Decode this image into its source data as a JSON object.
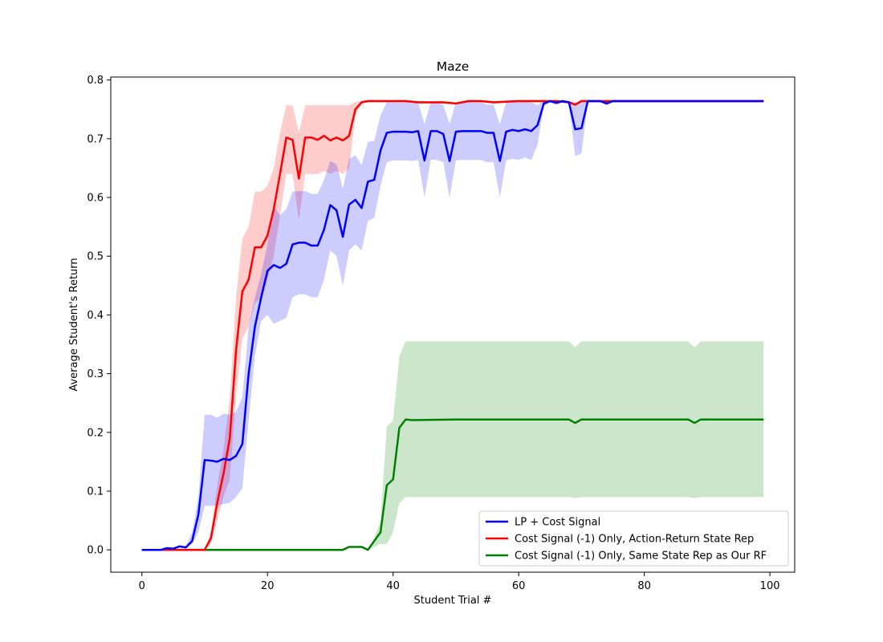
{
  "chart_data": {
    "type": "line",
    "title": "Maze",
    "xlabel": "Student Trial #",
    "ylabel": "Average Student's Return",
    "xlim": [
      -4.95,
      103.95
    ],
    "ylim": [
      -0.038,
      0.805
    ],
    "xticks": [
      0,
      20,
      40,
      60,
      80,
      100
    ],
    "yticks": [
      0.0,
      0.1,
      0.2,
      0.3,
      0.4,
      0.5,
      0.6,
      0.7,
      0.8
    ],
    "ytick_labels": [
      "0.0",
      "0.1",
      "0.2",
      "0.3",
      "0.4",
      "0.5",
      "0.6",
      "0.7",
      "0.8"
    ],
    "grid": false,
    "legend_position": "lower-right",
    "series": [
      {
        "name": "Cost Signal (-1) Only, Same State Rep as Our RF",
        "color": "#008000",
        "band_color": "#008000",
        "x": [
          0,
          32,
          33,
          35,
          36,
          37,
          38,
          39,
          40,
          41,
          42,
          43,
          50,
          60,
          68,
          69,
          70,
          80,
          87,
          88,
          89,
          99
        ],
        "y": [
          0.0,
          0.0,
          0.005,
          0.005,
          0.0,
          0.015,
          0.03,
          0.11,
          0.12,
          0.208,
          0.222,
          0.221,
          0.222,
          0.222,
          0.222,
          0.216,
          0.222,
          0.222,
          0.222,
          0.216,
          0.222,
          0.222
        ],
        "lower": [
          0.0,
          0.0,
          0.005,
          0.005,
          0.0,
          0.005,
          0.01,
          0.01,
          0.03,
          0.08,
          0.09,
          0.09,
          0.09,
          0.09,
          0.09,
          0.088,
          0.09,
          0.09,
          0.09,
          0.088,
          0.09,
          0.09
        ],
        "upper": [
          0.0,
          0.0,
          0.005,
          0.005,
          0.0,
          0.02,
          0.05,
          0.21,
          0.22,
          0.33,
          0.355,
          0.355,
          0.355,
          0.355,
          0.355,
          0.345,
          0.355,
          0.355,
          0.355,
          0.345,
          0.355,
          0.355
        ]
      },
      {
        "name": "Cost Signal (-1) Only, Action-Return State Rep",
        "color": "#ff0000",
        "band_color": "#ff0000",
        "x": [
          0,
          10,
          11,
          12,
          13,
          14,
          15,
          16,
          17,
          18,
          19,
          20,
          21,
          22,
          23,
          24,
          25,
          26,
          27,
          28,
          29,
          30,
          31,
          32,
          33,
          34,
          35,
          36,
          40,
          42,
          44,
          46,
          48,
          50,
          52,
          54,
          56,
          60,
          64,
          66,
          68,
          69,
          70,
          72,
          75,
          80,
          85,
          90,
          95,
          99
        ],
        "y": [
          0.0,
          0.0,
          0.02,
          0.08,
          0.13,
          0.19,
          0.34,
          0.44,
          0.46,
          0.515,
          0.515,
          0.535,
          0.58,
          0.64,
          0.702,
          0.698,
          0.632,
          0.702,
          0.702,
          0.698,
          0.705,
          0.697,
          0.702,
          0.697,
          0.705,
          0.75,
          0.762,
          0.764,
          0.764,
          0.764,
          0.762,
          0.762,
          0.762,
          0.76,
          0.764,
          0.764,
          0.762,
          0.764,
          0.764,
          0.764,
          0.762,
          0.758,
          0.764,
          0.764,
          0.764,
          0.764,
          0.764,
          0.764,
          0.764,
          0.764
        ],
        "lower": [
          0.0,
          0.0,
          0.01,
          0.05,
          0.09,
          0.12,
          0.26,
          0.36,
          0.38,
          0.42,
          0.43,
          0.46,
          0.5,
          0.57,
          0.64,
          0.64,
          0.56,
          0.64,
          0.64,
          0.64,
          0.645,
          0.64,
          0.645,
          0.64,
          0.65,
          0.74,
          0.76,
          0.762,
          0.762,
          0.762,
          0.76,
          0.76,
          0.76,
          0.758,
          0.762,
          0.762,
          0.76,
          0.762,
          0.762,
          0.762,
          0.76,
          0.756,
          0.762,
          0.762,
          0.762,
          0.762,
          0.762,
          0.762,
          0.762,
          0.762
        ],
        "upper": [
          0.0,
          0.0,
          0.03,
          0.11,
          0.17,
          0.26,
          0.43,
          0.53,
          0.55,
          0.61,
          0.61,
          0.62,
          0.65,
          0.71,
          0.757,
          0.757,
          0.71,
          0.757,
          0.757,
          0.757,
          0.757,
          0.757,
          0.757,
          0.757,
          0.757,
          0.762,
          0.765,
          0.766,
          0.766,
          0.766,
          0.764,
          0.764,
          0.764,
          0.762,
          0.766,
          0.766,
          0.764,
          0.766,
          0.766,
          0.766,
          0.764,
          0.76,
          0.766,
          0.766,
          0.766,
          0.766,
          0.766,
          0.766,
          0.766,
          0.766
        ]
      },
      {
        "name": "LP + Cost Signal",
        "color": "#0000ff",
        "band_color": "#0000ff",
        "x": [
          0,
          3,
          4,
          5,
          6,
          7,
          8,
          9,
          10,
          11,
          12,
          13,
          14,
          15,
          16,
          17,
          18,
          19,
          20,
          21,
          22,
          23,
          24,
          25,
          26,
          27,
          28,
          29,
          30,
          31,
          32,
          33,
          34,
          35,
          36,
          37,
          38,
          39,
          40,
          41,
          42,
          43,
          44,
          45,
          46,
          47,
          48,
          49,
          50,
          51,
          52,
          53,
          54,
          55,
          56,
          57,
          58,
          59,
          60,
          61,
          62,
          63,
          64,
          65,
          66,
          67,
          68,
          69,
          70,
          71,
          72,
          73,
          74,
          75,
          80,
          85,
          90,
          95,
          99
        ],
        "y": [
          0.0,
          0.0,
          0.003,
          0.002,
          0.006,
          0.004,
          0.015,
          0.06,
          0.153,
          0.152,
          0.15,
          0.155,
          0.153,
          0.16,
          0.18,
          0.3,
          0.38,
          0.43,
          0.475,
          0.485,
          0.48,
          0.487,
          0.52,
          0.523,
          0.523,
          0.518,
          0.518,
          0.545,
          0.587,
          0.578,
          0.533,
          0.588,
          0.596,
          0.582,
          0.627,
          0.63,
          0.68,
          0.71,
          0.712,
          0.712,
          0.712,
          0.711,
          0.713,
          0.663,
          0.713,
          0.713,
          0.708,
          0.662,
          0.712,
          0.713,
          0.713,
          0.713,
          0.713,
          0.71,
          0.71,
          0.662,
          0.712,
          0.715,
          0.713,
          0.716,
          0.713,
          0.723,
          0.76,
          0.764,
          0.761,
          0.764,
          0.762,
          0.716,
          0.718,
          0.764,
          0.764,
          0.764,
          0.76,
          0.764,
          0.764,
          0.764,
          0.764,
          0.764,
          0.764
        ],
        "lower": [
          0.0,
          0.0,
          0.003,
          0.002,
          0.004,
          0.004,
          0.01,
          0.03,
          0.075,
          0.075,
          0.075,
          0.078,
          0.08,
          0.09,
          0.105,
          0.22,
          0.33,
          0.39,
          0.4,
          0.385,
          0.39,
          0.395,
          0.43,
          0.435,
          0.435,
          0.43,
          0.43,
          0.46,
          0.51,
          0.5,
          0.45,
          0.51,
          0.52,
          0.51,
          0.56,
          0.565,
          0.62,
          0.66,
          0.663,
          0.663,
          0.663,
          0.662,
          0.664,
          0.6,
          0.664,
          0.664,
          0.66,
          0.6,
          0.663,
          0.664,
          0.664,
          0.664,
          0.664,
          0.66,
          0.66,
          0.6,
          0.663,
          0.666,
          0.664,
          0.668,
          0.664,
          0.69,
          0.755,
          0.762,
          0.758,
          0.762,
          0.76,
          0.67,
          0.675,
          0.762,
          0.762,
          0.762,
          0.757,
          0.762,
          0.762,
          0.762,
          0.762,
          0.762,
          0.762
        ],
        "upper": [
          0.0,
          0.0,
          0.003,
          0.002,
          0.008,
          0.006,
          0.03,
          0.09,
          0.23,
          0.23,
          0.225,
          0.232,
          0.23,
          0.235,
          0.26,
          0.38,
          0.43,
          0.47,
          0.52,
          0.585,
          0.57,
          0.58,
          0.61,
          0.611,
          0.611,
          0.606,
          0.606,
          0.63,
          0.662,
          0.656,
          0.615,
          0.666,
          0.672,
          0.655,
          0.695,
          0.696,
          0.74,
          0.762,
          0.762,
          0.762,
          0.762,
          0.761,
          0.762,
          0.725,
          0.762,
          0.762,
          0.757,
          0.725,
          0.762,
          0.762,
          0.762,
          0.762,
          0.762,
          0.758,
          0.758,
          0.725,
          0.762,
          0.764,
          0.762,
          0.764,
          0.762,
          0.757,
          0.765,
          0.766,
          0.764,
          0.766,
          0.764,
          0.762,
          0.762,
          0.766,
          0.766,
          0.766,
          0.763,
          0.766,
          0.766,
          0.766,
          0.766,
          0.766,
          0.766
        ]
      }
    ],
    "legend_order": [
      "LP + Cost Signal",
      "Cost Signal (-1) Only, Action-Return State Rep",
      "Cost Signal (-1) Only, Same State Rep as Our RF"
    ]
  }
}
